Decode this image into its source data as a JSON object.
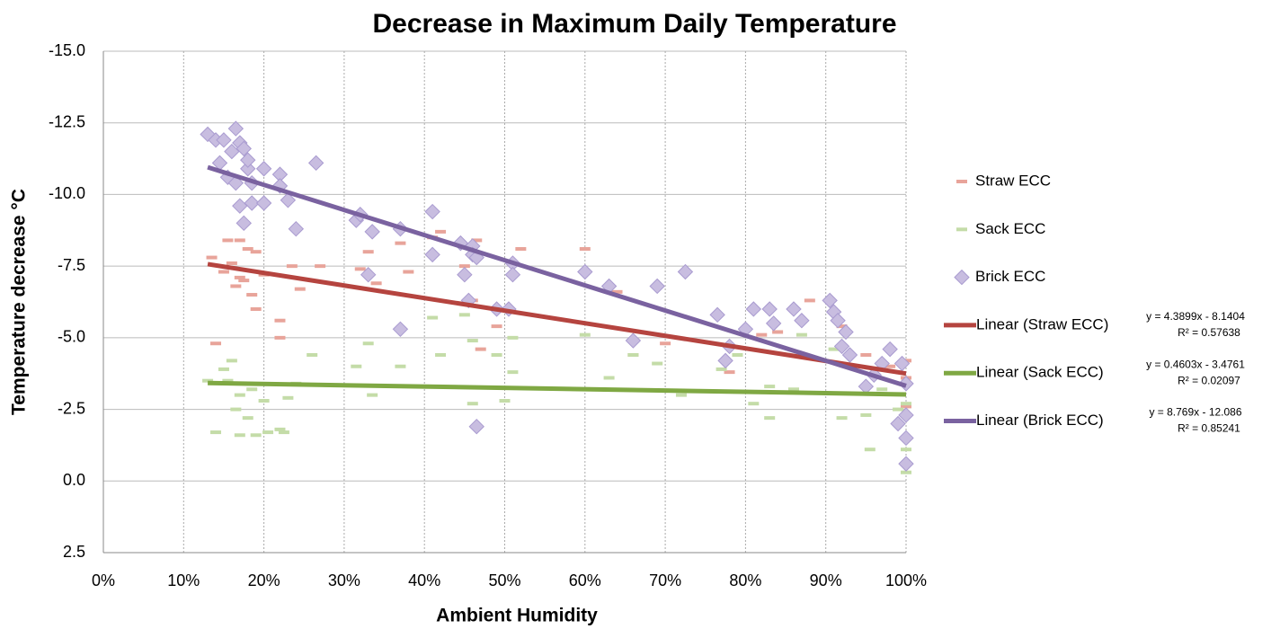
{
  "chart_data": {
    "type": "scatter",
    "title": "Decrease in Maximum Daily Temperature",
    "x_label": "Ambient Humidity",
    "y_label": "Temperature decrease °C",
    "xlim": [
      0,
      1
    ],
    "ylim": [
      2.5,
      -15
    ],
    "xticks": [
      {
        "value": 0,
        "label": "0%"
      },
      {
        "value": 0.1,
        "label": "10%"
      },
      {
        "value": 0.2,
        "label": "20%"
      },
      {
        "value": 0.3,
        "label": "30%"
      },
      {
        "value": 0.4,
        "label": "40%"
      },
      {
        "value": 0.5,
        "label": "50%"
      },
      {
        "value": 0.6,
        "label": "60%"
      },
      {
        "value": 0.7,
        "label": "70%"
      },
      {
        "value": 0.8,
        "label": "80%"
      },
      {
        "value": 0.9,
        "label": "90%"
      },
      {
        "value": 1,
        "label": "100%"
      }
    ],
    "yticks": [
      {
        "value": -15,
        "label": "-15.0"
      },
      {
        "value": -12.5,
        "label": "-12.5"
      },
      {
        "value": -10,
        "label": "-10.0"
      },
      {
        "value": -7.5,
        "label": "-7.5"
      },
      {
        "value": -5,
        "label": "-5.0"
      },
      {
        "value": -2.5,
        "label": "-2.5"
      },
      {
        "value": 0,
        "label": "0.0"
      },
      2.5
    ],
    "grid": true,
    "series": [
      {
        "name": "Straw ECC",
        "color": "#e8a49a",
        "marker": "dash",
        "x": [
          0.135,
          0.14,
          0.15,
          0.155,
          0.16,
          0.165,
          0.17,
          0.17,
          0.175,
          0.18,
          0.185,
          0.19,
          0.19,
          0.2,
          0.22,
          0.22,
          0.235,
          0.245,
          0.27,
          0.32,
          0.33,
          0.34,
          0.37,
          0.38,
          0.41,
          0.42,
          0.45,
          0.46,
          0.465,
          0.47,
          0.49,
          0.52,
          0.6,
          0.64,
          0.66,
          0.7,
          0.78,
          0.82,
          0.84,
          0.88,
          0.92,
          0.95,
          0.98,
          1,
          1,
          1
        ],
        "values": [
          -7.8,
          -4.8,
          -7.3,
          -8.4,
          -7.6,
          -6.8,
          -8.4,
          -7.1,
          -7.0,
          -8.1,
          -6.5,
          -6.0,
          -8.0,
          -7.2,
          -5.6,
          -5.0,
          -7.5,
          -6.7,
          -7.5,
          -7.4,
          -8.0,
          -6.9,
          -8.3,
          -7.3,
          -8.5,
          -8.7,
          -7.5,
          -6.3,
          -8.4,
          -4.6,
          -5.4,
          -8.1,
          -8.1,
          -6.6,
          -4.4,
          -4.8,
          -3.8,
          -5.1,
          -5.2,
          -6.3,
          -5.4,
          -4.4,
          -4.0,
          -4.2,
          -3.6,
          -2.6
        ]
      },
      {
        "name": "Sack ECC",
        "color": "#c4dca8",
        "marker": "dash",
        "x": [
          0.13,
          0.14,
          0.15,
          0.155,
          0.16,
          0.165,
          0.17,
          0.17,
          0.18,
          0.185,
          0.19,
          0.2,
          0.205,
          0.22,
          0.225,
          0.23,
          0.24,
          0.26,
          0.315,
          0.33,
          0.335,
          0.37,
          0.41,
          0.42,
          0.45,
          0.46,
          0.46,
          0.49,
          0.5,
          0.51,
          0.51,
          0.6,
          0.63,
          0.66,
          0.69,
          0.72,
          0.77,
          0.79,
          0.81,
          0.83,
          0.83,
          0.86,
          0.87,
          0.91,
          0.92,
          0.95,
          0.955,
          0.97,
          0.99,
          1,
          1,
          1
        ],
        "values": [
          -3.5,
          -1.7,
          -3.9,
          -3.5,
          -4.2,
          -2.5,
          -3.0,
          -1.6,
          -2.2,
          -3.2,
          -1.6,
          -2.8,
          -1.7,
          -1.8,
          -1.7,
          -2.9,
          -3.4,
          -4.4,
          -4.0,
          -4.8,
          -3.0,
          -4.0,
          -5.7,
          -4.4,
          -5.8,
          -4.9,
          -2.7,
          -4.4,
          -2.8,
          -3.8,
          -5.0,
          -5.1,
          -3.6,
          -4.4,
          -4.1,
          -3.0,
          -3.9,
          -4.4,
          -2.7,
          -3.3,
          -2.2,
          -3.2,
          -5.1,
          -4.6,
          -2.2,
          -2.3,
          -1.1,
          -3.2,
          -2.5,
          -1.1,
          -0.3,
          -2.7
        ]
      },
      {
        "name": "Brick ECC",
        "color": "#c8bde0",
        "marker": "diamond",
        "x": [
          0.13,
          0.14,
          0.145,
          0.15,
          0.155,
          0.16,
          0.165,
          0.165,
          0.17,
          0.17,
          0.175,
          0.175,
          0.18,
          0.18,
          0.185,
          0.185,
          0.2,
          0.2,
          0.22,
          0.22,
          0.23,
          0.24,
          0.265,
          0.315,
          0.32,
          0.33,
          0.335,
          0.37,
          0.37,
          0.41,
          0.41,
          0.445,
          0.45,
          0.455,
          0.46,
          0.46,
          0.465,
          0.465,
          0.49,
          0.505,
          0.51,
          0.51,
          0.6,
          0.63,
          0.66,
          0.69,
          0.725,
          0.765,
          0.775,
          0.78,
          0.8,
          0.81,
          0.83,
          0.835,
          0.86,
          0.87,
          0.905,
          0.91,
          0.915,
          0.92,
          0.925,
          0.93,
          0.95,
          0.96,
          0.97,
          0.98,
          0.99,
          0.995,
          1,
          1,
          1,
          1
        ],
        "values": [
          -12.1,
          -11.9,
          -11.1,
          -11.9,
          -10.6,
          -11.5,
          -12.3,
          -10.4,
          -11.8,
          -9.6,
          -11.6,
          -9.0,
          -10.9,
          -11.2,
          -10.4,
          -9.7,
          -10.9,
          -9.7,
          -10.7,
          -10.3,
          -9.8,
          -8.8,
          -11.1,
          -9.1,
          -9.3,
          -7.2,
          -8.7,
          -8.8,
          -5.3,
          -9.4,
          -7.9,
          -8.3,
          -7.2,
          -6.3,
          -8.2,
          -7.9,
          -7.8,
          -1.9,
          -6.0,
          -6.0,
          -7.6,
          -7.2,
          -7.3,
          -6.8,
          -4.9,
          -6.8,
          -7.3,
          -5.8,
          -4.2,
          -4.7,
          -5.3,
          -6.0,
          -6.0,
          -5.5,
          -6.0,
          -5.6,
          -6.3,
          -5.9,
          -5.6,
          -4.7,
          -5.2,
          -4.4,
          -3.3,
          -3.7,
          -4.1,
          -4.6,
          -2.0,
          -4.1,
          -2.3,
          -1.5,
          -0.6,
          -3.4
        ]
      }
    ],
    "trendlines": [
      {
        "name": "Linear (Straw ECC)",
        "color": "#b5443f",
        "equation": "y = 4.3899x - 8.1404",
        "r2": "R² = 0.57638",
        "x": [
          0.13,
          1
        ],
        "values": [
          -7.57,
          -3.75
        ]
      },
      {
        "name": "Linear (Sack ECC)",
        "color": "#7fa843",
        "equation": "y = 0.4603x - 3.4761",
        "r2": "R² = 0.02097",
        "x": [
          0.13,
          1
        ],
        "values": [
          -3.42,
          -3.02
        ]
      },
      {
        "name": "Linear (Brick ECC)",
        "color": "#7a62a0",
        "equation": "y = 8.769x - 12.086",
        "r2": "R² = 0.85241",
        "x": [
          0.13,
          1
        ],
        "values": [
          -10.95,
          -3.32
        ]
      }
    ]
  }
}
